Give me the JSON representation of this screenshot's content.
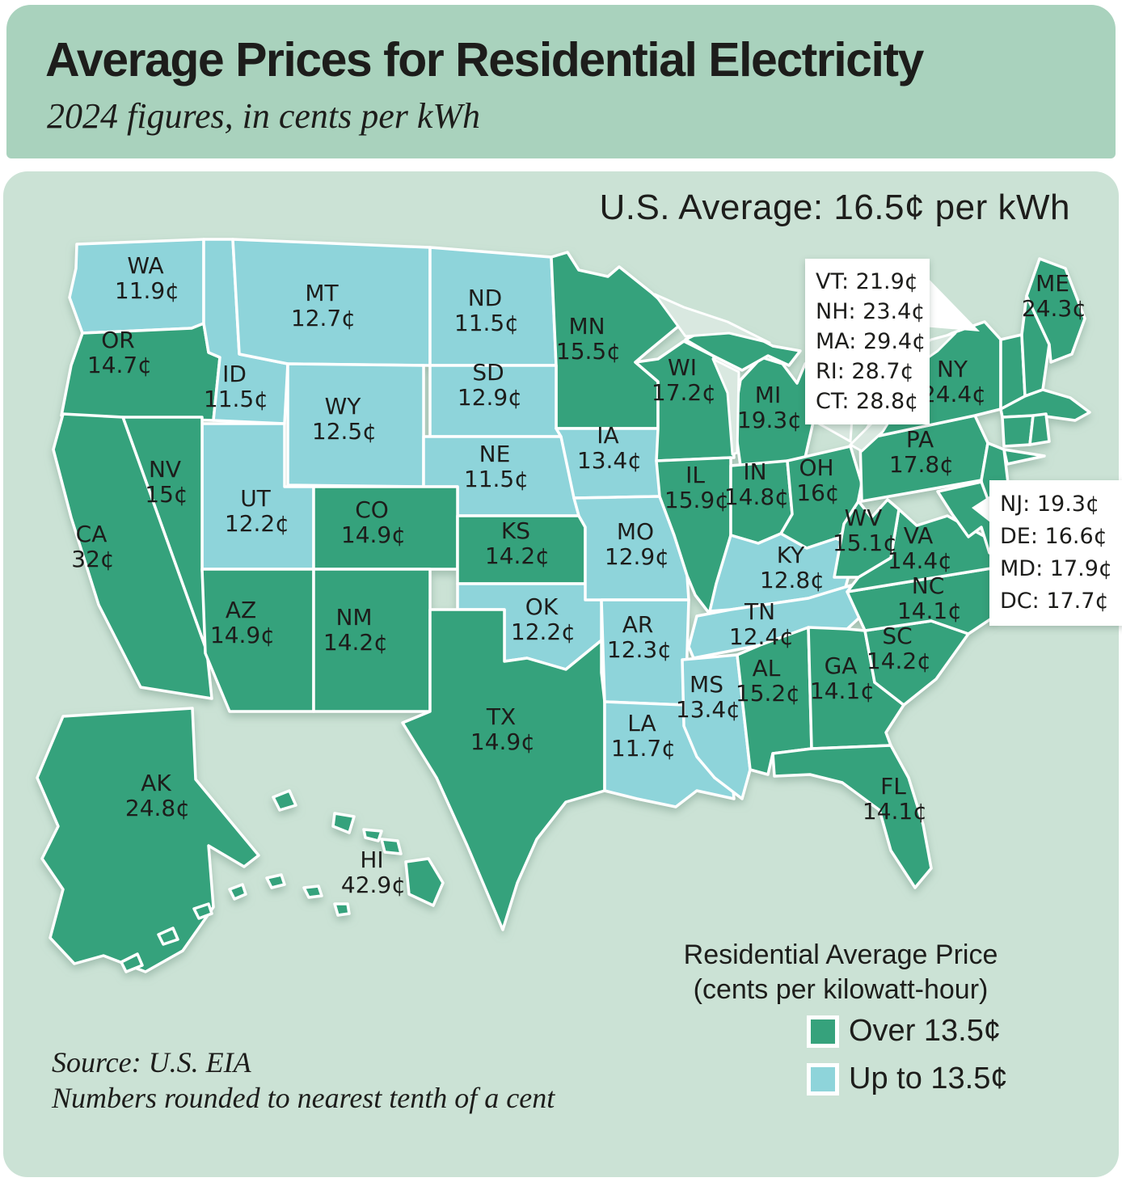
{
  "header": {
    "title": "Average Prices for Residential Electricity",
    "subtitle": "2024 figures, in cents per kWh"
  },
  "us_average": "U.S. Average: 16.5¢ per kWh",
  "map": {
    "states": [
      {
        "abbr": "WA",
        "value": "11.9¢",
        "category": "upto"
      },
      {
        "abbr": "OR",
        "value": "14.7¢",
        "category": "over"
      },
      {
        "abbr": "CA",
        "value": "32¢",
        "category": "over"
      },
      {
        "abbr": "NV",
        "value": "15¢",
        "category": "over"
      },
      {
        "abbr": "ID",
        "value": "11.5¢",
        "category": "upto"
      },
      {
        "abbr": "MT",
        "value": "12.7¢",
        "category": "upto"
      },
      {
        "abbr": "WY",
        "value": "12.5¢",
        "category": "upto"
      },
      {
        "abbr": "UT",
        "value": "12.2¢",
        "category": "upto"
      },
      {
        "abbr": "CO",
        "value": "14.9¢",
        "category": "over"
      },
      {
        "abbr": "AZ",
        "value": "14.9¢",
        "category": "over"
      },
      {
        "abbr": "NM",
        "value": "14.2¢",
        "category": "over"
      },
      {
        "abbr": "ND",
        "value": "11.5¢",
        "category": "upto"
      },
      {
        "abbr": "SD",
        "value": "12.9¢",
        "category": "upto"
      },
      {
        "abbr": "NE",
        "value": "11.5¢",
        "category": "upto"
      },
      {
        "abbr": "KS",
        "value": "14.2¢",
        "category": "over"
      },
      {
        "abbr": "OK",
        "value": "12.2¢",
        "category": "upto"
      },
      {
        "abbr": "TX",
        "value": "14.9¢",
        "category": "over"
      },
      {
        "abbr": "MN",
        "value": "15.5¢",
        "category": "over"
      },
      {
        "abbr": "IA",
        "value": "13.4¢",
        "category": "upto"
      },
      {
        "abbr": "MO",
        "value": "12.9¢",
        "category": "upto"
      },
      {
        "abbr": "AR",
        "value": "12.3¢",
        "category": "upto"
      },
      {
        "abbr": "LA",
        "value": "11.7¢",
        "category": "upto"
      },
      {
        "abbr": "WI",
        "value": "17.2¢",
        "category": "over"
      },
      {
        "abbr": "IL",
        "value": "15.9¢",
        "category": "over"
      },
      {
        "abbr": "MS",
        "value": "13.4¢",
        "category": "upto"
      },
      {
        "abbr": "MI",
        "value": "19.3¢",
        "category": "over"
      },
      {
        "abbr": "IN",
        "value": "14.8¢",
        "category": "over"
      },
      {
        "abbr": "OH",
        "value": "16¢",
        "category": "over"
      },
      {
        "abbr": "KY",
        "value": "12.8¢",
        "category": "upto"
      },
      {
        "abbr": "TN",
        "value": "12.4¢",
        "category": "upto"
      },
      {
        "abbr": "AL",
        "value": "15.2¢",
        "category": "over"
      },
      {
        "abbr": "GA",
        "value": "14.1¢",
        "category": "over"
      },
      {
        "abbr": "FL",
        "value": "14.1¢",
        "category": "over"
      },
      {
        "abbr": "SC",
        "value": "14.2¢",
        "category": "over"
      },
      {
        "abbr": "NC",
        "value": "14.1¢",
        "category": "over"
      },
      {
        "abbr": "VA",
        "value": "14.4¢",
        "category": "over"
      },
      {
        "abbr": "WV",
        "value": "15.1¢",
        "category": "over"
      },
      {
        "abbr": "PA",
        "value": "17.8¢",
        "category": "over"
      },
      {
        "abbr": "NY",
        "value": "24.4¢",
        "category": "over"
      },
      {
        "abbr": "ME",
        "value": "24.3¢",
        "category": "over"
      },
      {
        "abbr": "VT",
        "value": "21.9¢",
        "category": "over"
      },
      {
        "abbr": "NH",
        "value": "23.4¢",
        "category": "over"
      },
      {
        "abbr": "MA",
        "value": "29.4¢",
        "category": "over"
      },
      {
        "abbr": "RI",
        "value": "28.7¢",
        "category": "over"
      },
      {
        "abbr": "CT",
        "value": "28.8¢",
        "category": "over"
      },
      {
        "abbr": "NJ",
        "value": "19.3¢",
        "category": "over"
      },
      {
        "abbr": "DE",
        "value": "16.6¢",
        "category": "over"
      },
      {
        "abbr": "MD",
        "value": "17.9¢",
        "category": "over"
      },
      {
        "abbr": "DC",
        "value": "17.7¢",
        "category": "over"
      },
      {
        "abbr": "AK",
        "value": "24.8¢",
        "category": "over"
      },
      {
        "abbr": "HI",
        "value": "42.9¢",
        "category": "over"
      }
    ],
    "callouts": [
      {
        "rows": [
          "VT: 21.9¢",
          "NH: 23.4¢",
          "MA: 29.4¢",
          "RI: 28.7¢",
          "CT: 28.8¢"
        ]
      },
      {
        "rows": [
          "NJ: 19.3¢",
          "DE: 16.6¢",
          "MD: 17.9¢",
          "DC: 17.7¢"
        ]
      }
    ]
  },
  "legend": {
    "title_line1": "Residential Average Price",
    "title_line2": "(cents per kilowatt-hour)",
    "items": [
      {
        "label": "Over 13.5¢",
        "category": "over"
      },
      {
        "label": "Up to 13.5¢",
        "category": "upto"
      }
    ]
  },
  "source": {
    "line1": "Source: U.S. EIA",
    "line2": "Numbers rounded to nearest tenth of a cent"
  },
  "colors": {
    "over": "#36a27c",
    "upto": "#8ed4da",
    "header_bg": "#a9d2bd",
    "content_bg": "#cbe2d5",
    "text": "#1d1d1b"
  }
}
